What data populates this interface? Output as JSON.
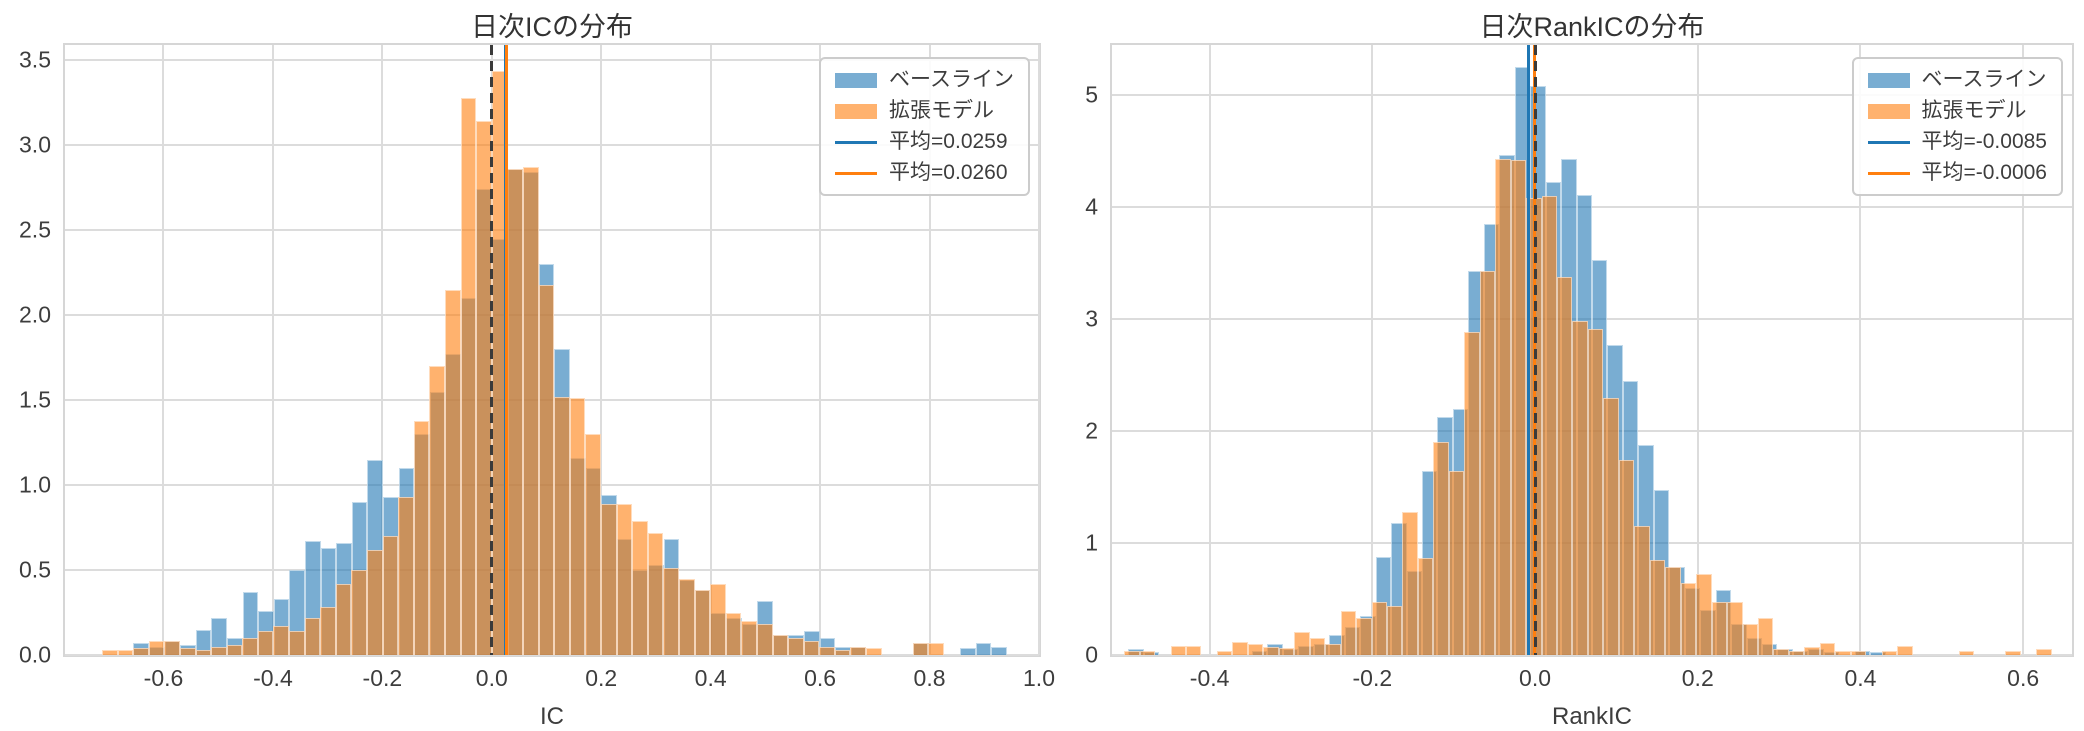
{
  "style": {
    "baseline_color": "#1f77b4",
    "extended_color": "#ff7f0e",
    "bar_alpha": 0.6,
    "grid_color": "#dcdcdc",
    "spine_color": "#d6d6d6",
    "text_color": "#3d3d3d",
    "zero_line_color": "#3a3a3a",
    "background": "#ffffff"
  },
  "chart_data": [
    {
      "type": "bar",
      "subtype": "overlapping-histogram",
      "title": "日次ICの分布",
      "xlabel": "IC",
      "ylabel": "",
      "xlim": [
        -0.78,
        1.0
      ],
      "ylim": [
        0,
        3.59
      ],
      "xticks": [
        -0.6,
        -0.4,
        -0.2,
        0.0,
        0.2,
        0.4,
        0.6,
        0.8,
        1.0
      ],
      "xtick_labels": [
        "-0.6",
        "-0.4",
        "-0.2",
        "0.0",
        "0.2",
        "0.4",
        "0.6",
        "0.8",
        "1.0"
      ],
      "yticks": [
        0.0,
        0.5,
        1.0,
        1.5,
        2.0,
        2.5,
        3.0,
        3.5
      ],
      "ytick_labels": [
        "0.0",
        "0.5",
        "1.0",
        "1.5",
        "2.0",
        "2.5",
        "3.0",
        "3.5"
      ],
      "grid": true,
      "legend_position": "upper right",
      "series": [
        {
          "name": "ベースライン",
          "color": "#1f77b4",
          "bin_start": -0.655,
          "bin_width": 0.0285,
          "heights": [
            0.07,
            0.05,
            0.08,
            0.06,
            0.15,
            0.22,
            0.1,
            0.37,
            0.26,
            0.33,
            0.5,
            0.67,
            0.63,
            0.66,
            0.9,
            1.15,
            0.93,
            1.1,
            1.3,
            1.55,
            1.77,
            2.1,
            2.74,
            2.45,
            2.86,
            2.84,
            2.3,
            1.8,
            1.16,
            1.1,
            0.94,
            0.68,
            0.5,
            0.53,
            0.68,
            0.44,
            0.38,
            0.25,
            0.22,
            0.18,
            0.32,
            0.12,
            0.12,
            0.14,
            0.1,
            0.05,
            0.05,
            0,
            0,
            0,
            0.07,
            0,
            0,
            0.04,
            0.07,
            0.05
          ]
        },
        {
          "name": "拡張モデル",
          "color": "#ff7f0e",
          "bin_start": -0.7125,
          "bin_width": 0.0285,
          "heights": [
            0.03,
            0.03,
            0.04,
            0.08,
            0.08,
            0.04,
            0.03,
            0.05,
            0.06,
            0.1,
            0.14,
            0.17,
            0.14,
            0.22,
            0.28,
            0.42,
            0.5,
            0.62,
            0.7,
            0.93,
            1.38,
            1.7,
            2.15,
            3.28,
            3.14,
            3.44,
            2.86,
            2.87,
            2.18,
            1.52,
            1.51,
            1.3,
            0.89,
            0.89,
            0.79,
            0.72,
            0.51,
            0.45,
            0.38,
            0.42,
            0.25,
            0.2,
            0.18,
            0.12,
            0.1,
            0.08,
            0.05,
            0.03,
            0.05,
            0.04,
            0,
            0,
            0.07,
            0.07
          ]
        }
      ],
      "vlines": [
        {
          "label": "平均=0.0259",
          "value": 0.0259,
          "color": "#1f77b4",
          "style": "solid"
        },
        {
          "label": "平均=0.0260",
          "value": 0.026,
          "color": "#ff7f0e",
          "style": "solid"
        },
        {
          "label": "",
          "value": 0.0,
          "color": "#3a3a3a",
          "style": "dashed"
        }
      ],
      "legend": [
        {
          "label": "ベースライン",
          "swatch": "patch",
          "color": "#1f77b4"
        },
        {
          "label": "拡張モデル",
          "swatch": "patch",
          "color": "#ff7f0e"
        },
        {
          "label": "平均=0.0259",
          "swatch": "line",
          "color": "#1f77b4"
        },
        {
          "label": "平均=0.0260",
          "swatch": "line",
          "color": "#ff7f0e"
        }
      ]
    },
    {
      "type": "bar",
      "subtype": "overlapping-histogram",
      "title": "日次RankICの分布",
      "xlabel": "RankIC",
      "ylabel": "",
      "xlim": [
        -0.52,
        0.66
      ],
      "ylim": [
        0,
        5.45
      ],
      "xticks": [
        -0.4,
        -0.2,
        0.0,
        0.2,
        0.4,
        0.6
      ],
      "xtick_labels": [
        "-0.4",
        "-0.2",
        "0.0",
        "0.2",
        "0.4",
        "0.6"
      ],
      "yticks": [
        0,
        1,
        2,
        3,
        4,
        5
      ],
      "ytick_labels": [
        "0",
        "1",
        "2",
        "3",
        "4",
        "5"
      ],
      "grid": true,
      "legend_position": "upper right",
      "series": [
        {
          "name": "ベースライン",
          "color": "#1f77b4",
          "bin_start": -0.5,
          "bin_width": 0.019,
          "heights": [
            0.05,
            0.03,
            0,
            0,
            0,
            0,
            0,
            0,
            0.04,
            0.1,
            0.05,
            0.08,
            0.1,
            0.18,
            0.25,
            0.35,
            0.88,
            1.18,
            0.75,
            1.64,
            2.13,
            2.2,
            3.43,
            3.85,
            4.47,
            5.25,
            5.08,
            4.23,
            4.43,
            4.11,
            3.53,
            2.77,
            2.45,
            1.88,
            1.47,
            0.79,
            0.6,
            0.4,
            0.58,
            0.28,
            0.15,
            0.1,
            0.05,
            0.04,
            0.05,
            0.03,
            0,
            0.04,
            0.03,
            0,
            0,
            0,
            0,
            0,
            0,
            0
          ]
        },
        {
          "name": "拡張モデル",
          "color": "#ff7f0e",
          "bin_start": -0.505,
          "bin_width": 0.019,
          "heights": [
            0.04,
            0.04,
            0,
            0.08,
            0.08,
            0,
            0.04,
            0.12,
            0.1,
            0.07,
            0.06,
            0.21,
            0.15,
            0.1,
            0.39,
            0.33,
            0.47,
            0.44,
            1.28,
            0.87,
            1.9,
            1.64,
            2.89,
            3.43,
            4.43,
            4.42,
            4.08,
            4.1,
            3.38,
            2.98,
            2.91,
            2.3,
            1.74,
            1.15,
            0.85,
            0.79,
            0.64,
            0.72,
            0.47,
            0.47,
            0.28,
            0.33,
            0.05,
            0.04,
            0.07,
            0.11,
            0.04,
            0.04,
            0,
            0.04,
            0.08,
            0,
            0,
            0,
            0.04,
            0,
            0,
            0.04,
            0,
            0.05
          ]
        }
      ],
      "vlines": [
        {
          "label": "平均=-0.0085",
          "value": -0.0085,
          "color": "#1f77b4",
          "style": "solid"
        },
        {
          "label": "平均=-0.0006",
          "value": -0.0006,
          "color": "#ff7f0e",
          "style": "solid"
        },
        {
          "label": "",
          "value": 0.0,
          "color": "#3a3a3a",
          "style": "dashed"
        }
      ],
      "legend": [
        {
          "label": "ベースライン",
          "swatch": "patch",
          "color": "#1f77b4"
        },
        {
          "label": "拡張モデル",
          "swatch": "patch",
          "color": "#ff7f0e"
        },
        {
          "label": "平均=-0.0085",
          "swatch": "line",
          "color": "#1f77b4"
        },
        {
          "label": "平均=-0.0006",
          "swatch": "line",
          "color": "#ff7f0e"
        }
      ]
    }
  ]
}
